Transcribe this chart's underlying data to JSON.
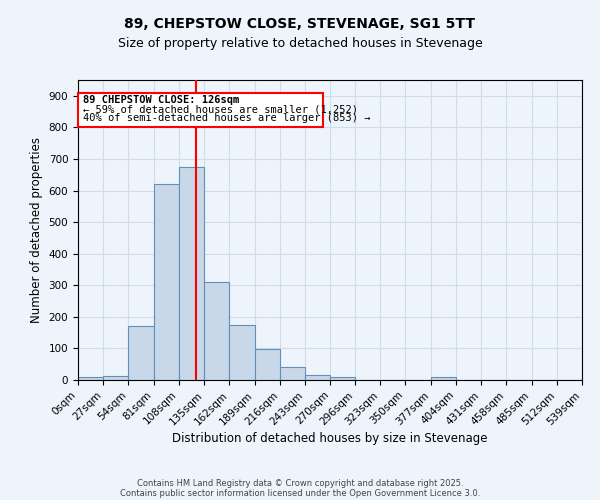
{
  "title": "89, CHEPSTOW CLOSE, STEVENAGE, SG1 5TT",
  "subtitle": "Size of property relative to detached houses in Stevenage",
  "xlabel": "Distribution of detached houses by size in Stevenage",
  "ylabel": "Number of detached properties",
  "bin_edges": [
    0,
    27,
    54,
    81,
    108,
    135,
    162,
    189,
    216,
    243,
    270,
    296,
    323,
    350,
    377,
    404,
    431,
    458,
    485,
    512,
    539
  ],
  "bar_heights": [
    8,
    12,
    170,
    620,
    675,
    310,
    175,
    98,
    40,
    15,
    10,
    0,
    0,
    0,
    8,
    0,
    0,
    0,
    0,
    0
  ],
  "bar_color": "#c8d8e8",
  "bar_edge_color": "#6090b8",
  "grid_color": "#d0dce8",
  "background_color": "#eef4fb",
  "red_line_x": 126,
  "annotation_line1": "89 CHEPSTOW CLOSE: 126sqm",
  "annotation_line2": "← 59% of detached houses are smaller (1,252)",
  "annotation_line3": "40% of semi-detached houses are larger (853) →",
  "ylim": [
    0,
    950
  ],
  "yticks": [
    0,
    100,
    200,
    300,
    400,
    500,
    600,
    700,
    800,
    900
  ],
  "footer_line1": "Contains HM Land Registry data © Crown copyright and database right 2025.",
  "footer_line2": "Contains public sector information licensed under the Open Government Licence 3.0.",
  "title_fontsize": 10,
  "subtitle_fontsize": 9,
  "tick_label_fontsize": 7.5,
  "axis_label_fontsize": 8.5,
  "annotation_fontsize": 7.5,
  "footer_fontsize": 6.0
}
